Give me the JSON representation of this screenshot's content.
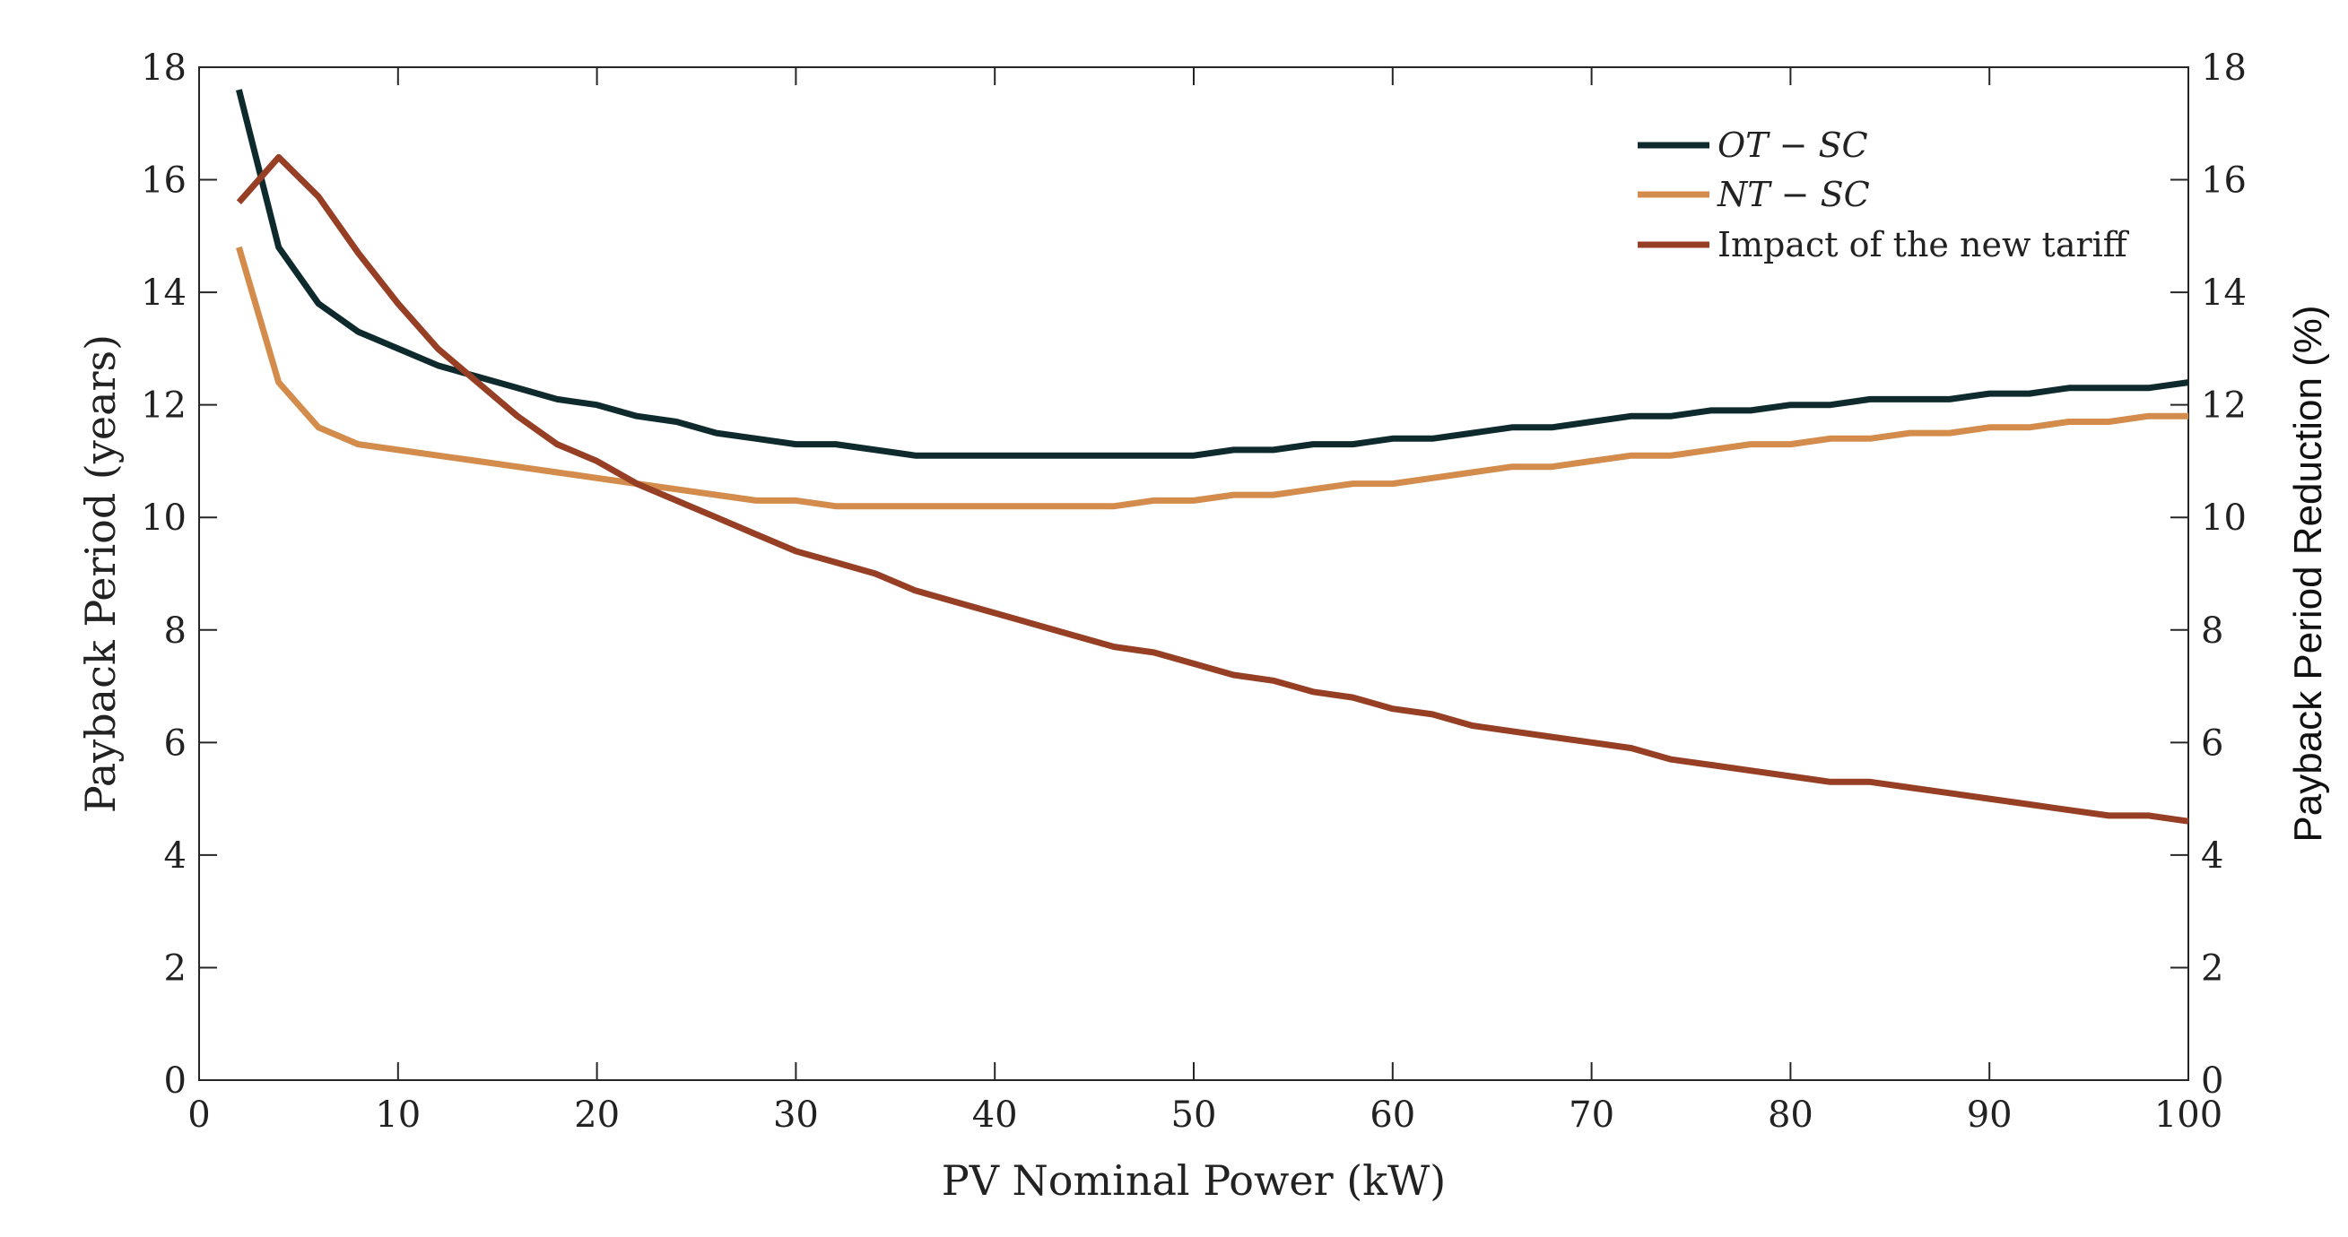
{
  "chart_data": {
    "type": "line",
    "xlabel": "PV Nominal Power (kW)",
    "ylabel": "Payback Period (years)",
    "y2label": "Payback Period Reduction (%)",
    "xlim": [
      0,
      100
    ],
    "ylim": [
      0,
      18
    ],
    "y2lim": [
      0,
      18
    ],
    "xticks": [
      "0",
      "10",
      "20",
      "30",
      "40",
      "50",
      "60",
      "70",
      "80",
      "90",
      "100"
    ],
    "yticks": [
      "0",
      "2",
      "4",
      "6",
      "8",
      "10",
      "12",
      "14",
      "16",
      "18"
    ],
    "y2ticks": [
      "0",
      "2",
      "4",
      "6",
      "8",
      "10",
      "12",
      "14",
      "16",
      "18"
    ],
    "legend_position": "top-right",
    "x": [
      2,
      4,
      6,
      8,
      10,
      12,
      14,
      16,
      18,
      20,
      22,
      24,
      26,
      28,
      30,
      32,
      34,
      36,
      38,
      40,
      42,
      44,
      46,
      48,
      50,
      52,
      54,
      56,
      58,
      60,
      62,
      64,
      66,
      68,
      70,
      72,
      74,
      76,
      78,
      80,
      82,
      84,
      86,
      88,
      90,
      92,
      94,
      96,
      98,
      100
    ],
    "series": [
      {
        "name": "OT − SC",
        "axis": "left",
        "color": "#0f2a2c",
        "values": [
          17.6,
          14.8,
          13.8,
          13.3,
          13.0,
          12.7,
          12.5,
          12.3,
          12.1,
          12.0,
          11.8,
          11.7,
          11.5,
          11.4,
          11.3,
          11.3,
          11.2,
          11.1,
          11.1,
          11.1,
          11.1,
          11.1,
          11.1,
          11.1,
          11.1,
          11.2,
          11.2,
          11.3,
          11.3,
          11.4,
          11.4,
          11.5,
          11.6,
          11.6,
          11.7,
          11.8,
          11.8,
          11.9,
          11.9,
          12.0,
          12.0,
          12.1,
          12.1,
          12.1,
          12.2,
          12.2,
          12.3,
          12.3,
          12.3,
          12.4
        ]
      },
      {
        "name": "NT − SC",
        "axis": "left",
        "color": "#d38c4c",
        "values": [
          14.8,
          12.4,
          11.6,
          11.3,
          11.2,
          11.1,
          11.0,
          10.9,
          10.8,
          10.7,
          10.6,
          10.5,
          10.4,
          10.3,
          10.3,
          10.2,
          10.2,
          10.2,
          10.2,
          10.2,
          10.2,
          10.2,
          10.2,
          10.3,
          10.3,
          10.4,
          10.4,
          10.5,
          10.6,
          10.6,
          10.7,
          10.8,
          10.9,
          10.9,
          11.0,
          11.1,
          11.1,
          11.2,
          11.3,
          11.3,
          11.4,
          11.4,
          11.5,
          11.5,
          11.6,
          11.6,
          11.7,
          11.7,
          11.8,
          11.8
        ]
      },
      {
        "name": "Impact of the new tariff",
        "axis": "right",
        "color": "#973f24",
        "values": [
          15.6,
          16.4,
          15.7,
          14.7,
          13.8,
          13.0,
          12.4,
          11.8,
          11.3,
          11.0,
          10.6,
          10.3,
          10.0,
          9.7,
          9.4,
          9.2,
          9.0,
          8.7,
          8.5,
          8.3,
          8.1,
          7.9,
          7.7,
          7.6,
          7.4,
          7.2,
          7.1,
          6.9,
          6.8,
          6.6,
          6.5,
          6.3,
          6.2,
          6.1,
          6.0,
          5.9,
          5.7,
          5.6,
          5.5,
          5.4,
          5.3,
          5.3,
          5.2,
          5.1,
          5.0,
          4.9,
          4.8,
          4.7,
          4.7,
          4.6
        ]
      }
    ]
  }
}
